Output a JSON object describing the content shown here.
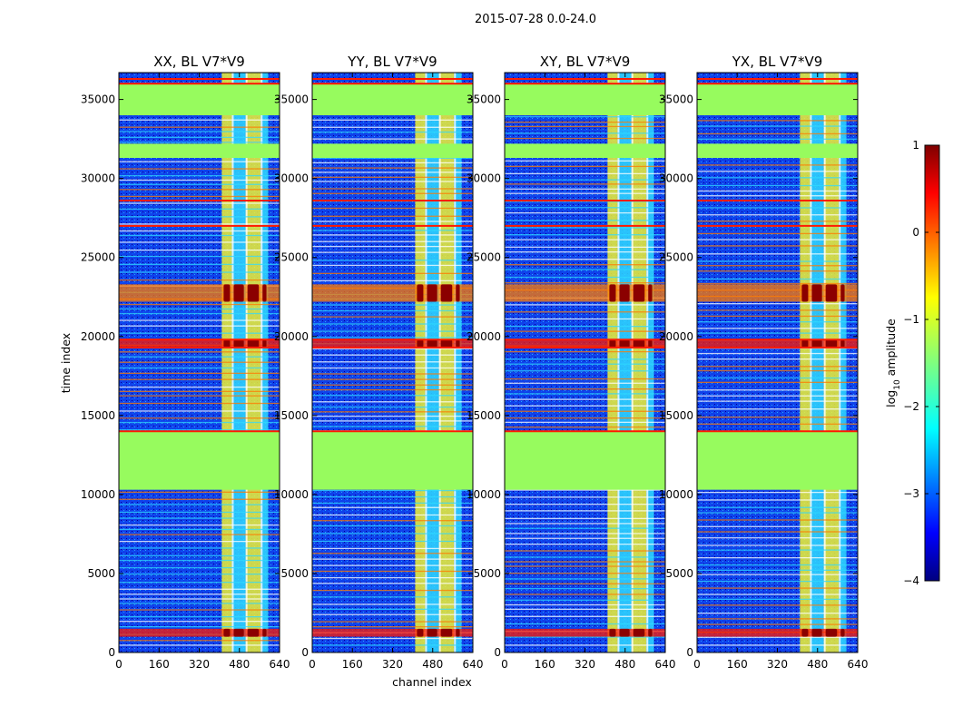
{
  "figure": {
    "suptitle": "2015-07-28 0.0-24.0"
  },
  "colors": {
    "flag_green": "#97fb5e",
    "background_blue": "#1040ea",
    "deep_blue": "#00008f",
    "cyan": "#2fd9ff",
    "yellow": "#f0f233",
    "orange": "#ff7a00",
    "red": "#ff1a00",
    "dark_red": "#8b0000"
  },
  "chart_data": {
    "type": "heatmap",
    "title": "2015-07-28 0.0-24.0",
    "xlabel": "channel index",
    "ylabel": "time index",
    "xlim": [
      0,
      640
    ],
    "ylim": [
      0,
      36700
    ],
    "xticks": [
      "0",
      "160",
      "320",
      "480",
      "640"
    ],
    "yticks": [
      "0",
      "5000",
      "10000",
      "15000",
      "20000",
      "25000",
      "30000",
      "35000"
    ],
    "colorbar": {
      "label": "log₁₀ amplitude",
      "label_base": "log",
      "label_sub": "10",
      "label_rest": " amplitude",
      "range": [
        -4,
        1
      ],
      "ticks": [
        "1",
        "0",
        "−1",
        "−2",
        "−3",
        "−4"
      ],
      "cmap": "jet"
    },
    "panels": [
      {
        "title": "XX, BL V7*V9"
      },
      {
        "title": "YY, BL V7*V9"
      },
      {
        "title": "XY, BL V7*V9"
      },
      {
        "title": "YX, BL V7*V9"
      }
    ],
    "flagged_time_ranges": [
      [
        10300,
        14000
      ],
      [
        31300,
        32200
      ],
      [
        34000,
        36000
      ]
    ],
    "strong_rfi_channels": [
      [
        410,
        450
      ],
      [
        450,
        505
      ],
      [
        505,
        565
      ],
      [
        565,
        595
      ]
    ],
    "high_amplitude_time_ranges": [
      [
        22200,
        23300
      ],
      [
        19300,
        19800
      ],
      [
        1000,
        1500
      ]
    ],
    "flag_color_value": -1.0,
    "background_value": -3.0
  }
}
